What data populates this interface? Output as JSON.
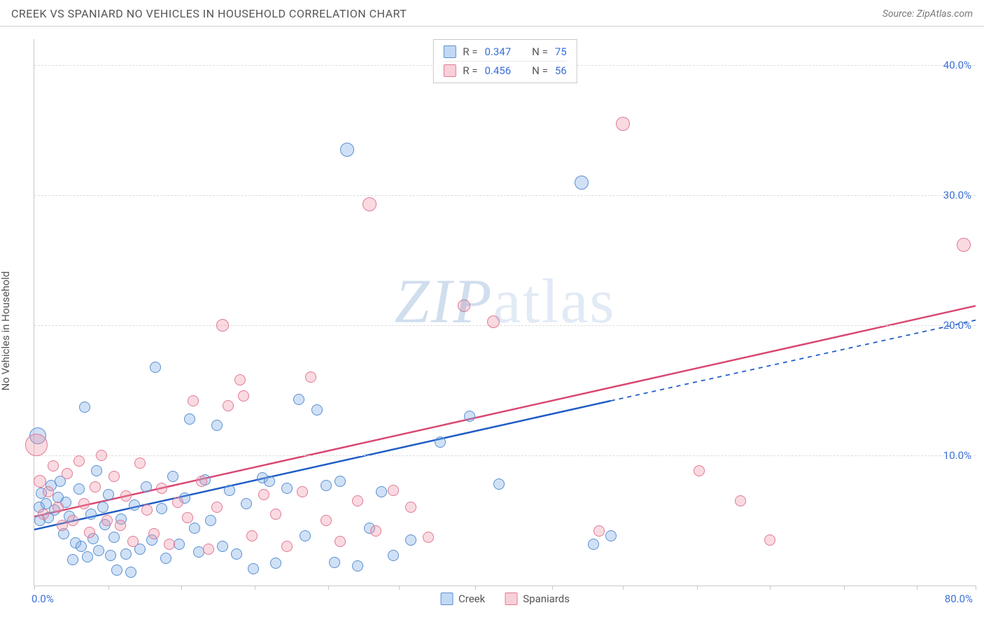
{
  "header": {
    "title": "CREEK VS SPANIARD NO VEHICLES IN HOUSEHOLD CORRELATION CHART",
    "source_prefix": "Source: ",
    "source_link": "ZipAtlas.com"
  },
  "chart": {
    "type": "scatter",
    "ylabel": "No Vehicles in Household",
    "watermark_a": "ZIP",
    "watermark_b": "atlas",
    "background_color": "#ffffff",
    "grid_color": "#dcdcdc",
    "axis_color": "#c8c8c8",
    "tick_label_color": "#3b6fd6",
    "xlim": [
      0,
      80
    ],
    "ylim": [
      0,
      42
    ],
    "x_tick_first": "0.0%",
    "x_tick_last": "80.0%",
    "x_tick_marks": [
      0,
      6.3,
      12.5,
      18.75,
      25,
      31,
      37.5,
      44,
      50,
      56.3,
      62.5,
      68.8,
      75,
      80
    ],
    "y_ticks": [
      {
        "v": 10,
        "label": "10.0%"
      },
      {
        "v": 20,
        "label": "20.0%"
      },
      {
        "v": 30,
        "label": "30.0%"
      },
      {
        "v": 40,
        "label": "40.0%"
      }
    ],
    "series": [
      {
        "key": "creek",
        "label": "Creek",
        "color_fill": "rgba(120,170,230,0.35)",
        "color_stroke": "#5a8fd0",
        "line_color": "#1e5bc6",
        "line_width": 2.5,
        "R": "0.347",
        "N": "75",
        "trend": {
          "x1": 0,
          "y1": 4.3,
          "x2_solid": 49,
          "y2_solid": 14.2,
          "x2_dash": 80,
          "y2_dash": 20.4
        },
        "points": [
          {
            "x": 0.3,
            "y": 11.5,
            "r": 12
          },
          {
            "x": 0.4,
            "y": 6.0,
            "r": 8
          },
          {
            "x": 0.5,
            "y": 5.0,
            "r": 8
          },
          {
            "x": 0.6,
            "y": 7.1,
            "r": 8
          },
          {
            "x": 1.0,
            "y": 6.3,
            "r": 8
          },
          {
            "x": 1.2,
            "y": 5.2,
            "r": 8
          },
          {
            "x": 1.4,
            "y": 7.7,
            "r": 8
          },
          {
            "x": 1.7,
            "y": 5.8,
            "r": 8
          },
          {
            "x": 2.0,
            "y": 6.8,
            "r": 8
          },
          {
            "x": 2.2,
            "y": 8.0,
            "r": 8
          },
          {
            "x": 2.5,
            "y": 4.0,
            "r": 8
          },
          {
            "x": 2.7,
            "y": 6.4,
            "r": 8
          },
          {
            "x": 3.0,
            "y": 5.3,
            "r": 8
          },
          {
            "x": 3.3,
            "y": 2.0,
            "r": 8
          },
          {
            "x": 3.5,
            "y": 3.3,
            "r": 8
          },
          {
            "x": 3.8,
            "y": 7.4,
            "r": 8
          },
          {
            "x": 4.0,
            "y": 3.0,
            "r": 8
          },
          {
            "x": 4.3,
            "y": 13.7,
            "r": 8
          },
          {
            "x": 4.5,
            "y": 2.2,
            "r": 8
          },
          {
            "x": 4.8,
            "y": 5.5,
            "r": 8
          },
          {
            "x": 5.0,
            "y": 3.6,
            "r": 8
          },
          {
            "x": 5.3,
            "y": 8.8,
            "r": 8
          },
          {
            "x": 5.5,
            "y": 2.7,
            "r": 8
          },
          {
            "x": 5.8,
            "y": 6.0,
            "r": 8
          },
          {
            "x": 6.0,
            "y": 4.7,
            "r": 8
          },
          {
            "x": 6.3,
            "y": 7.0,
            "r": 8
          },
          {
            "x": 6.5,
            "y": 2.3,
            "r": 8
          },
          {
            "x": 6.8,
            "y": 3.7,
            "r": 8
          },
          {
            "x": 7.0,
            "y": 1.2,
            "r": 8
          },
          {
            "x": 7.4,
            "y": 5.1,
            "r": 8
          },
          {
            "x": 7.8,
            "y": 2.4,
            "r": 8
          },
          {
            "x": 8.2,
            "y": 1.0,
            "r": 8
          },
          {
            "x": 8.5,
            "y": 6.2,
            "r": 8
          },
          {
            "x": 9.0,
            "y": 2.8,
            "r": 8
          },
          {
            "x": 9.5,
            "y": 7.6,
            "r": 8
          },
          {
            "x": 10.0,
            "y": 3.5,
            "r": 8
          },
          {
            "x": 10.3,
            "y": 16.8,
            "r": 8
          },
          {
            "x": 10.8,
            "y": 5.9,
            "r": 8
          },
          {
            "x": 11.2,
            "y": 2.1,
            "r": 8
          },
          {
            "x": 11.8,
            "y": 8.4,
            "r": 8
          },
          {
            "x": 12.3,
            "y": 3.2,
            "r": 8
          },
          {
            "x": 12.8,
            "y": 6.7,
            "r": 8
          },
          {
            "x": 13.2,
            "y": 12.8,
            "r": 8
          },
          {
            "x": 13.6,
            "y": 4.4,
            "r": 8
          },
          {
            "x": 14.0,
            "y": 2.6,
            "r": 8
          },
          {
            "x": 14.5,
            "y": 8.1,
            "r": 8
          },
          {
            "x": 15.0,
            "y": 5.0,
            "r": 8
          },
          {
            "x": 15.5,
            "y": 12.3,
            "r": 8
          },
          {
            "x": 16.0,
            "y": 3.0,
            "r": 8
          },
          {
            "x": 16.6,
            "y": 7.3,
            "r": 8
          },
          {
            "x": 17.2,
            "y": 2.4,
            "r": 8
          },
          {
            "x": 18.0,
            "y": 6.3,
            "r": 8
          },
          {
            "x": 18.6,
            "y": 1.3,
            "r": 8
          },
          {
            "x": 19.4,
            "y": 8.3,
            "r": 8
          },
          {
            "x": 20.0,
            "y": 8.0,
            "r": 8
          },
          {
            "x": 20.5,
            "y": 1.7,
            "r": 8
          },
          {
            "x": 21.5,
            "y": 7.5,
            "r": 8
          },
          {
            "x": 22.5,
            "y": 14.3,
            "r": 8
          },
          {
            "x": 23.0,
            "y": 3.8,
            "r": 8
          },
          {
            "x": 24.0,
            "y": 13.5,
            "r": 8
          },
          {
            "x": 24.8,
            "y": 7.7,
            "r": 8
          },
          {
            "x": 25.5,
            "y": 1.8,
            "r": 8
          },
          {
            "x": 26.0,
            "y": 8.0,
            "r": 8
          },
          {
            "x": 26.6,
            "y": 33.5,
            "r": 10
          },
          {
            "x": 27.5,
            "y": 1.5,
            "r": 8
          },
          {
            "x": 28.5,
            "y": 4.4,
            "r": 8
          },
          {
            "x": 29.5,
            "y": 7.2,
            "r": 8
          },
          {
            "x": 30.5,
            "y": 2.3,
            "r": 8
          },
          {
            "x": 32.0,
            "y": 3.5,
            "r": 8
          },
          {
            "x": 34.5,
            "y": 11.0,
            "r": 8
          },
          {
            "x": 37.0,
            "y": 13.0,
            "r": 8
          },
          {
            "x": 39.5,
            "y": 7.8,
            "r": 8
          },
          {
            "x": 46.5,
            "y": 31.0,
            "r": 10
          },
          {
            "x": 47.5,
            "y": 3.2,
            "r": 8
          },
          {
            "x": 49.0,
            "y": 3.8,
            "r": 8
          }
        ]
      },
      {
        "key": "span",
        "label": "Spaniards",
        "color_fill": "rgba(240,150,170,0.35)",
        "color_stroke": "#e07a95",
        "line_color": "#d94872",
        "line_width": 2.5,
        "R": "0.456",
        "N": "56",
        "trend": {
          "x1": 0,
          "y1": 5.3,
          "x2_solid": 80,
          "y2_solid": 21.5,
          "x2_dash": 80,
          "y2_dash": 21.5
        },
        "points": [
          {
            "x": 0.2,
            "y": 10.8,
            "r": 16
          },
          {
            "x": 0.5,
            "y": 8.0,
            "r": 9
          },
          {
            "x": 0.8,
            "y": 5.5,
            "r": 8
          },
          {
            "x": 1.2,
            "y": 7.2,
            "r": 8
          },
          {
            "x": 1.6,
            "y": 9.2,
            "r": 8
          },
          {
            "x": 2.0,
            "y": 6.0,
            "r": 8
          },
          {
            "x": 2.4,
            "y": 4.6,
            "r": 8
          },
          {
            "x": 2.8,
            "y": 8.6,
            "r": 8
          },
          {
            "x": 3.3,
            "y": 5.0,
            "r": 8
          },
          {
            "x": 3.8,
            "y": 9.6,
            "r": 8
          },
          {
            "x": 4.2,
            "y": 6.3,
            "r": 8
          },
          {
            "x": 4.7,
            "y": 4.1,
            "r": 8
          },
          {
            "x": 5.2,
            "y": 7.6,
            "r": 8
          },
          {
            "x": 5.7,
            "y": 10.0,
            "r": 8
          },
          {
            "x": 6.2,
            "y": 5.0,
            "r": 8
          },
          {
            "x": 6.8,
            "y": 8.4,
            "r": 8
          },
          {
            "x": 7.3,
            "y": 4.6,
            "r": 8
          },
          {
            "x": 7.8,
            "y": 6.9,
            "r": 8
          },
          {
            "x": 8.4,
            "y": 3.4,
            "r": 8
          },
          {
            "x": 9.0,
            "y": 9.4,
            "r": 8
          },
          {
            "x": 9.6,
            "y": 5.8,
            "r": 8
          },
          {
            "x": 10.2,
            "y": 4.0,
            "r": 8
          },
          {
            "x": 10.8,
            "y": 7.5,
            "r": 8
          },
          {
            "x": 11.5,
            "y": 3.2,
            "r": 8
          },
          {
            "x": 12.2,
            "y": 6.4,
            "r": 8
          },
          {
            "x": 13.0,
            "y": 5.2,
            "r": 8
          },
          {
            "x": 13.5,
            "y": 14.2,
            "r": 8
          },
          {
            "x": 14.2,
            "y": 8.0,
            "r": 8
          },
          {
            "x": 14.8,
            "y": 2.8,
            "r": 8
          },
          {
            "x": 15.5,
            "y": 6.0,
            "r": 8
          },
          {
            "x": 16.0,
            "y": 20.0,
            "r": 9
          },
          {
            "x": 16.5,
            "y": 13.8,
            "r": 8
          },
          {
            "x": 17.5,
            "y": 15.8,
            "r": 8
          },
          {
            "x": 17.8,
            "y": 14.6,
            "r": 8
          },
          {
            "x": 18.5,
            "y": 3.8,
            "r": 8
          },
          {
            "x": 19.5,
            "y": 7.0,
            "r": 8
          },
          {
            "x": 20.5,
            "y": 5.5,
            "r": 8
          },
          {
            "x": 21.5,
            "y": 3.0,
            "r": 8
          },
          {
            "x": 22.8,
            "y": 7.2,
            "r": 8
          },
          {
            "x": 23.5,
            "y": 16.0,
            "r": 8
          },
          {
            "x": 24.8,
            "y": 5.0,
            "r": 8
          },
          {
            "x": 26.0,
            "y": 3.4,
            "r": 8
          },
          {
            "x": 27.5,
            "y": 6.5,
            "r": 8
          },
          {
            "x": 28.5,
            "y": 29.3,
            "r": 10
          },
          {
            "x": 29.0,
            "y": 4.2,
            "r": 8
          },
          {
            "x": 30.5,
            "y": 7.3,
            "r": 8
          },
          {
            "x": 32.0,
            "y": 6.0,
            "r": 8
          },
          {
            "x": 33.5,
            "y": 3.7,
            "r": 8
          },
          {
            "x": 36.5,
            "y": 21.5,
            "r": 9
          },
          {
            "x": 39.0,
            "y": 20.3,
            "r": 9
          },
          {
            "x": 48.0,
            "y": 4.2,
            "r": 8
          },
          {
            "x": 50.0,
            "y": 35.5,
            "r": 10
          },
          {
            "x": 56.5,
            "y": 8.8,
            "r": 8
          },
          {
            "x": 60.0,
            "y": 6.5,
            "r": 8
          },
          {
            "x": 62.5,
            "y": 3.5,
            "r": 8
          },
          {
            "x": 79.0,
            "y": 26.2,
            "r": 10
          }
        ]
      }
    ],
    "legend_top_labels": {
      "R": "R =",
      "N": "N ="
    },
    "legend_bottom": [
      "Creek",
      "Spaniards"
    ]
  }
}
